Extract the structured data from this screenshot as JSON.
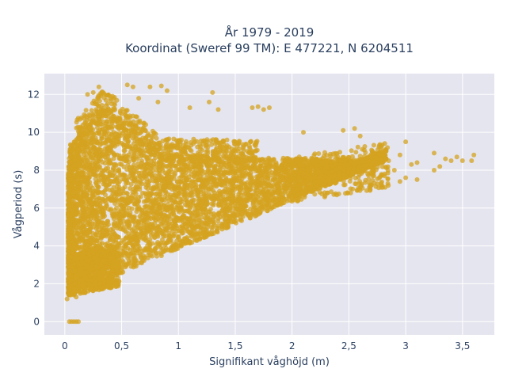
{
  "chart_data": {
    "type": "scatter",
    "title_line1": "År 1979 - 2019",
    "title_line2": "Koordinat (Sweref 99 TM): E 477221, N 6204511",
    "xlabel": "Signifikant våghöjd (m)",
    "ylabel": "Vågperiod (s)",
    "xlim": [
      -0.18,
      3.78
    ],
    "ylim": [
      -0.7,
      13.1
    ],
    "x_ticks": [
      0,
      0.5,
      1,
      1.5,
      2,
      2.5,
      3,
      3.5
    ],
    "x_tick_labels": [
      "0",
      "0,5",
      "1",
      "1,5",
      "2",
      "2,5",
      "3",
      "3,5"
    ],
    "y_ticks": [
      0,
      2,
      4,
      6,
      8,
      10,
      12
    ],
    "y_tick_labels": [
      "0",
      "2",
      "4",
      "6",
      "8",
      "10",
      "12"
    ],
    "grid": true,
    "marker_color": "#d4a320",
    "plot_background": "#e5e5ef",
    "outliers": [
      [
        0.04,
        0
      ],
      [
        0.06,
        0
      ],
      [
        0.08,
        0
      ],
      [
        0.1,
        0
      ],
      [
        0.12,
        0
      ],
      [
        0.05,
        2.7
      ],
      [
        0.02,
        1.2
      ],
      [
        0.08,
        1.4
      ],
      [
        0.1,
        1.3
      ],
      [
        0.2,
        12.0
      ],
      [
        0.25,
        12.1
      ],
      [
        0.3,
        12.4
      ],
      [
        0.55,
        12.5
      ],
      [
        0.6,
        12.4
      ],
      [
        0.75,
        12.4
      ],
      [
        0.85,
        12.45
      ],
      [
        0.65,
        11.8
      ],
      [
        0.4,
        11.9
      ],
      [
        0.9,
        12.2
      ],
      [
        0.82,
        11.6
      ],
      [
        1.3,
        12.1
      ],
      [
        1.27,
        11.6
      ],
      [
        1.1,
        11.3
      ],
      [
        1.35,
        11.2
      ],
      [
        1.65,
        11.3
      ],
      [
        1.7,
        11.35
      ],
      [
        1.8,
        11.3
      ],
      [
        1.75,
        11.2
      ],
      [
        2.1,
        10.0
      ],
      [
        2.45,
        10.1
      ],
      [
        2.55,
        10.2
      ],
      [
        2.6,
        9.8
      ],
      [
        2.8,
        9.0
      ],
      [
        3.0,
        9.5
      ],
      [
        2.95,
        8.8
      ],
      [
        3.05,
        8.3
      ],
      [
        3.1,
        8.4
      ],
      [
        3.25,
        8.0
      ],
      [
        3.3,
        8.2
      ],
      [
        3.25,
        8.9
      ],
      [
        3.35,
        8.6
      ],
      [
        3.4,
        8.5
      ],
      [
        3.45,
        8.7
      ],
      [
        3.5,
        8.5
      ],
      [
        3.58,
        8.5
      ],
      [
        3.6,
        8.8
      ],
      [
        3.0,
        7.6
      ],
      [
        2.95,
        7.4
      ],
      [
        2.9,
        8.0
      ],
      [
        3.1,
        7.5
      ],
      [
        2.85,
        8.5
      ]
    ]
  }
}
